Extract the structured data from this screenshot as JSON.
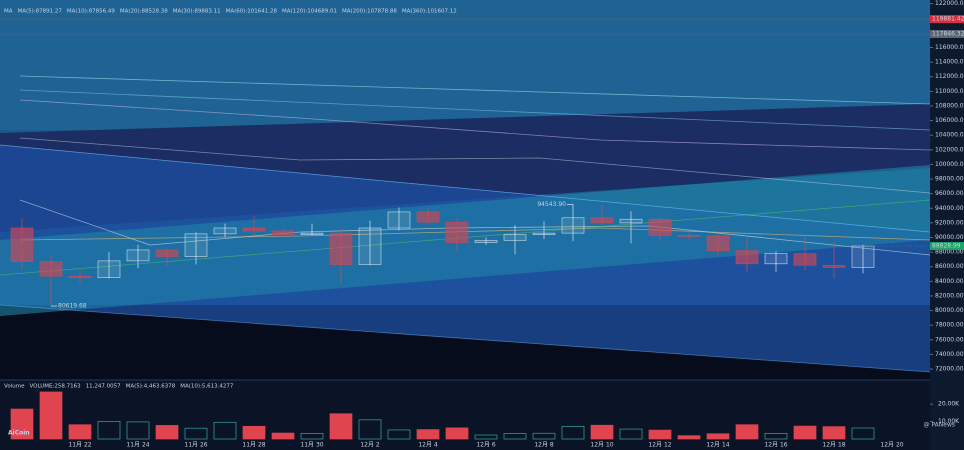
{
  "chart_data": {
    "type": "candlestick",
    "header": [
      {
        "text": "MA",
        "color": "#ffffff"
      },
      {
        "text": "MA(5):87891.27",
        "color": "#f5b041"
      },
      {
        "text": "MA(10):87856.49",
        "color": "#e87de8"
      },
      {
        "text": "MA(20):88528.38",
        "color": "#4fd1c5"
      },
      {
        "text": "MA(30):89883.11",
        "color": "#7ee0ff"
      },
      {
        "text": "MA(60):101641.28",
        "color": "#9ae66e"
      },
      {
        "text": "MA(120):104689.01",
        "color": "#ff6b6b"
      },
      {
        "text": "MA(200):107878.88",
        "color": "#ff9a3c"
      },
      {
        "text": "MA(360):101607.12",
        "color": "#b39ddb"
      }
    ],
    "categories": [
      null,
      null,
      "11月 22",
      null,
      "11月 24",
      null,
      "11月 26",
      null,
      "11月 28",
      null,
      "11月 30",
      null,
      "12月 2",
      null,
      "12月 4",
      null,
      "12月 6",
      null,
      "12月 8",
      null,
      "12月 10",
      null,
      "12月 12",
      null,
      "12月 14",
      null,
      "12月 16",
      null,
      "12月 18",
      null,
      "12月 20"
    ],
    "open": [
      91300,
      86700,
      84700,
      84500,
      86800,
      88300,
      87400,
      90500,
      91300,
      90900,
      90400,
      90600,
      86300,
      91300,
      93500,
      92100,
      89300,
      89600,
      90400,
      90600,
      92700,
      92000,
      92500,
      90300,
      90200,
      88200,
      86400,
      87800,
      86200,
      85900,
      null
    ],
    "high": [
      92700,
      87500,
      85600,
      88000,
      89000,
      88600,
      90700,
      91900,
      92900,
      91200,
      91900,
      91300,
      92300,
      94100,
      94000,
      92700,
      90000,
      91700,
      92200,
      94543.9,
      94500,
      93600,
      92800,
      90700,
      90600,
      90000,
      88100,
      90300,
      89400,
      89000,
      null
    ],
    "low": [
      85600,
      80619.68,
      83600,
      84400,
      85800,
      86100,
      86300,
      90000,
      90200,
      90300,
      90300,
      83800,
      86200,
      91000,
      91700,
      88100,
      89000,
      87700,
      89800,
      89500,
      91500,
      89200,
      89500,
      89800,
      87600,
      85200,
      85300,
      85500,
      84400,
      85100,
      null
    ],
    "close": [
      86700,
      84700,
      84500,
      86800,
      88300,
      87400,
      90500,
      91300,
      90900,
      90400,
      90600,
      86300,
      91300,
      93500,
      92100,
      89300,
      89600,
      90400,
      90600,
      92700,
      92000,
      92500,
      90300,
      90200,
      88200,
      86400,
      87800,
      86200,
      85900,
      88828.99,
      null
    ],
    "high_label": "94543.90",
    "low_label": "80619.68",
    "volume": [
      17200,
      27000,
      8200,
      10100,
      9800,
      7800,
      6200,
      9600,
      7300,
      3400,
      3200,
      14500,
      11000,
      5200,
      5400,
      6400,
      2300,
      3100,
      3300,
      7200,
      7900,
      5700,
      5100,
      1900,
      3000,
      8200,
      3200,
      7400,
      7100,
      6300,
      null
    ],
    "bull_color": "#e8eef5",
    "bear_color": "#e0454f",
    "ylim": [
      70500,
      122500
    ],
    "yticks": [
      {
        "value": 72000,
        "label": "72000.00"
      },
      {
        "value": 74000,
        "label": "74000.00"
      },
      {
        "value": 76000,
        "label": "76000.00"
      },
      {
        "value": 78000,
        "label": "78000.00"
      },
      {
        "value": 80000,
        "label": "80000.00"
      },
      {
        "value": 82000,
        "label": "82000.00"
      },
      {
        "value": 84000,
        "label": "84000.00"
      },
      {
        "value": 86000,
        "label": "86000.00"
      },
      {
        "value": 88000,
        "label": "88000.00"
      },
      {
        "value": 90000,
        "label": "90000.00"
      },
      {
        "value": 92000,
        "label": "92000.00"
      },
      {
        "value": 94000,
        "label": "94000.00"
      },
      {
        "value": 96000,
        "label": "96000.00"
      },
      {
        "value": 98000,
        "label": "98000.00"
      },
      {
        "value": 100000,
        "label": "100000.00"
      },
      {
        "value": 102000,
        "label": "102000.00"
      },
      {
        "value": 104000,
        "label": "104000.00"
      },
      {
        "value": 106000,
        "label": "106000.00"
      },
      {
        "value": 108000,
        "label": "108000.00"
      },
      {
        "value": 110000,
        "label": "110000.00"
      },
      {
        "value": 112000,
        "label": "112000.00"
      },
      {
        "value": 114000,
        "label": "114000.00"
      },
      {
        "value": 116000,
        "label": "116000.00"
      },
      {
        "value": 118000,
        "label": "118000.00"
      },
      {
        "value": 120000,
        "label": "120000.00"
      },
      {
        "value": 122000,
        "label": "122000.00"
      }
    ],
    "price_lines": [
      {
        "value": 119881.42,
        "color": "#d9303f"
      },
      {
        "value": 117846.32,
        "color": "#5d6675"
      }
    ],
    "current_color": "#1fa36a",
    "volume_header": [
      "Volume",
      "VOLUME:258.7163",
      "11,247.0057",
      "MA(5):4,463.6378",
      "MA(10):5,613.4277"
    ],
    "volume_ylim": [
      0,
      31000
    ],
    "volume_yticks": [
      {
        "value": 10000,
        "label": "10.00K"
      },
      {
        "value": 20000,
        "label": "20.00K"
      }
    ],
    "watermarks": [
      "AiCoin",
      "@ PANews"
    ]
  }
}
